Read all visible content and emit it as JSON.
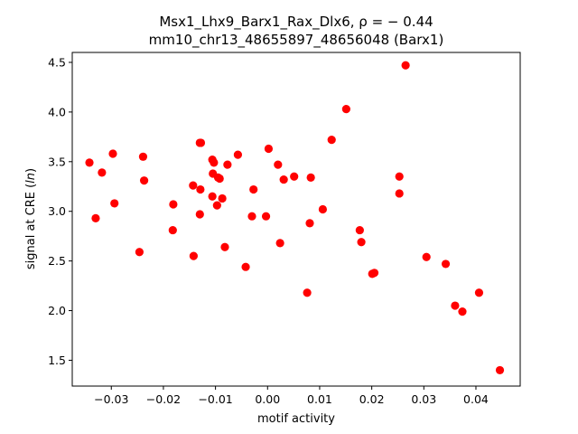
{
  "chart_data": {
    "type": "scatter",
    "title_line1": "Msx1_Lhx9_Barx1_Rax_Dlx6, ρ = − 0.44",
    "title_line2": "mm10_chr13_48655897_48656048 (Barx1)",
    "xlabel": "motif activity",
    "ylabel": "signal at CRE (ln)",
    "xlim": [
      -0.0375,
      0.0485
    ],
    "ylim": [
      1.24,
      4.6
    ],
    "xticks": [
      {
        "value": -0.03,
        "label": "−0.03"
      },
      {
        "value": -0.02,
        "label": "−0.02"
      },
      {
        "value": -0.01,
        "label": "−0.01"
      },
      {
        "value": 0.0,
        "label": "0.00"
      },
      {
        "value": 0.01,
        "label": "0.01"
      },
      {
        "value": 0.02,
        "label": "0.02"
      },
      {
        "value": 0.03,
        "label": "0.03"
      },
      {
        "value": 0.04,
        "label": "0.04"
      }
    ],
    "yticks": [
      {
        "value": 1.5,
        "label": "1.5"
      },
      {
        "value": 2.0,
        "label": "2.0"
      },
      {
        "value": 2.5,
        "label": "2.5"
      },
      {
        "value": 3.0,
        "label": "3.0"
      },
      {
        "value": 3.5,
        "label": "3.5"
      },
      {
        "value": 4.0,
        "label": "4.0"
      },
      {
        "value": 4.5,
        "label": "4.5"
      }
    ],
    "grid": false,
    "marker_color": "#ff0000",
    "points": [
      {
        "x": -0.0342,
        "y": 3.49
      },
      {
        "x": -0.033,
        "y": 2.93
      },
      {
        "x": -0.0318,
        "y": 3.39
      },
      {
        "x": -0.0297,
        "y": 3.58
      },
      {
        "x": -0.0294,
        "y": 3.08
      },
      {
        "x": -0.0246,
        "y": 2.59
      },
      {
        "x": -0.0239,
        "y": 3.55
      },
      {
        "x": -0.0237,
        "y": 3.31
      },
      {
        "x": -0.0181,
        "y": 3.07
      },
      {
        "x": -0.0182,
        "y": 2.81
      },
      {
        "x": -0.0143,
        "y": 3.26
      },
      {
        "x": -0.0142,
        "y": 2.55
      },
      {
        "x": -0.013,
        "y": 3.69
      },
      {
        "x": -0.0128,
        "y": 3.69
      },
      {
        "x": -0.0129,
        "y": 3.22
      },
      {
        "x": -0.013,
        "y": 2.97
      },
      {
        "x": -0.0106,
        "y": 3.52
      },
      {
        "x": -0.0103,
        "y": 3.49
      },
      {
        "x": -0.0105,
        "y": 3.38
      },
      {
        "x": -0.0106,
        "y": 3.15
      },
      {
        "x": -0.0095,
        "y": 3.34
      },
      {
        "x": -0.0092,
        "y": 3.33
      },
      {
        "x": -0.0097,
        "y": 3.06
      },
      {
        "x": -0.0087,
        "y": 3.13
      },
      {
        "x": -0.0077,
        "y": 3.47
      },
      {
        "x": -0.0082,
        "y": 2.64
      },
      {
        "x": -0.0057,
        "y": 3.57
      },
      {
        "x": -0.0042,
        "y": 2.44
      },
      {
        "x": -0.0027,
        "y": 3.22
      },
      {
        "x": -0.003,
        "y": 2.95
      },
      {
        "x": -0.0003,
        "y": 2.95
      },
      {
        "x": 0.0002,
        "y": 3.63
      },
      {
        "x": 0.002,
        "y": 3.47
      },
      {
        "x": 0.0024,
        "y": 2.68
      },
      {
        "x": 0.0031,
        "y": 3.32
      },
      {
        "x": 0.0051,
        "y": 3.35
      },
      {
        "x": 0.0076,
        "y": 2.18
      },
      {
        "x": 0.0081,
        "y": 2.88
      },
      {
        "x": 0.0083,
        "y": 3.34
      },
      {
        "x": 0.0106,
        "y": 3.02
      },
      {
        "x": 0.0123,
        "y": 3.72
      },
      {
        "x": 0.0151,
        "y": 4.03
      },
      {
        "x": 0.0177,
        "y": 2.81
      },
      {
        "x": 0.018,
        "y": 2.69
      },
      {
        "x": 0.0201,
        "y": 2.37
      },
      {
        "x": 0.0205,
        "y": 2.38
      },
      {
        "x": 0.0253,
        "y": 3.35
      },
      {
        "x": 0.0253,
        "y": 3.18
      },
      {
        "x": 0.0265,
        "y": 4.47
      },
      {
        "x": 0.0305,
        "y": 2.54
      },
      {
        "x": 0.0342,
        "y": 2.47
      },
      {
        "x": 0.036,
        "y": 2.05
      },
      {
        "x": 0.0374,
        "y": 1.99
      },
      {
        "x": 0.0406,
        "y": 2.18
      },
      {
        "x": 0.0446,
        "y": 1.4
      }
    ]
  }
}
